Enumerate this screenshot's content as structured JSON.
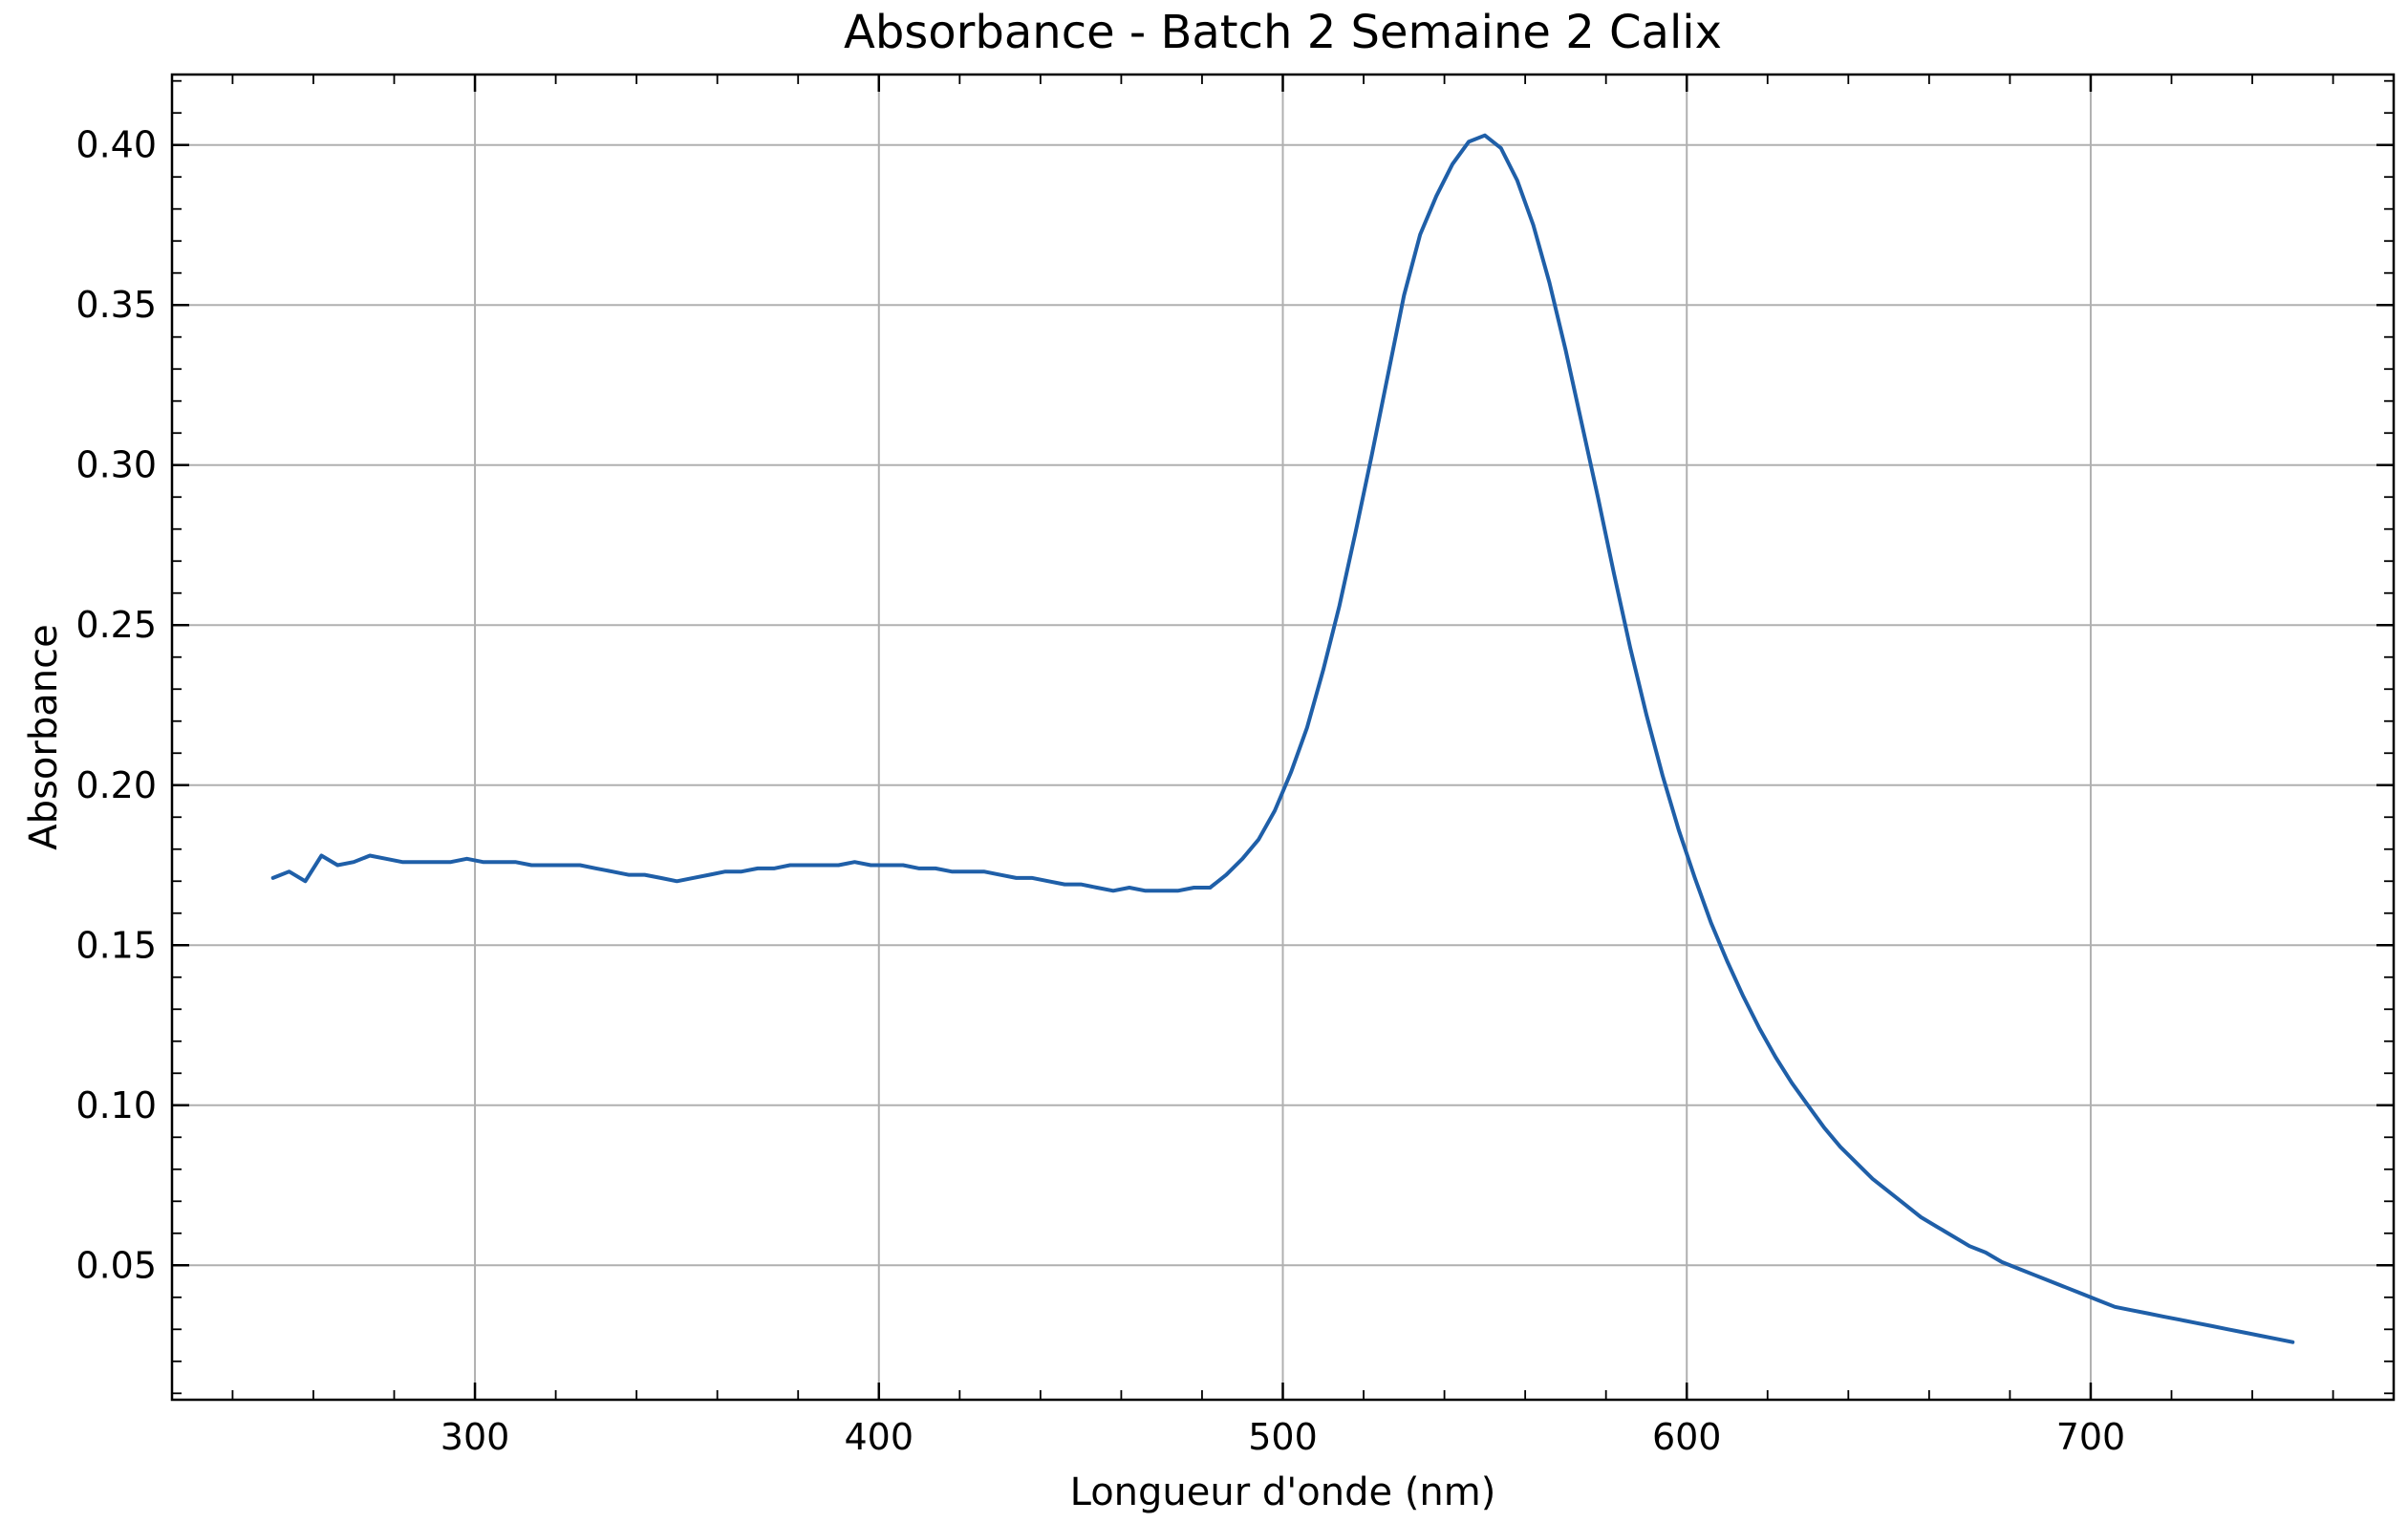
{
  "chart_data": {
    "type": "line",
    "title": "Absorbance - Batch 2 Semaine 2 Calix",
    "xlabel": "Longueur d'onde (nm)",
    "ylabel": "Absorbance",
    "xlim": [
      225,
      775
    ],
    "ylim": [
      0.008,
      0.422
    ],
    "xticks": [
      300,
      400,
      500,
      600,
      700
    ],
    "xtick_labels": [
      "300",
      "400",
      "500",
      "600",
      "700"
    ],
    "yticks": [
      0.05,
      0.1,
      0.15,
      0.2,
      0.25,
      0.3,
      0.35,
      0.4
    ],
    "ytick_labels": [
      "0.05",
      "0.10",
      "0.15",
      "0.20",
      "0.25",
      "0.30",
      "0.35",
      "0.40"
    ],
    "grid": true,
    "line_color": "#1f5fa8",
    "series": [
      {
        "x": [
          250,
          254,
          258,
          262,
          266,
          270,
          274,
          278,
          282,
          286,
          290,
          294,
          298,
          302,
          306,
          310,
          314,
          318,
          322,
          326,
          330,
          334,
          338,
          342,
          346,
          350,
          354,
          358,
          362,
          366,
          370,
          374,
          378,
          382,
          386,
          390,
          394,
          398,
          402,
          406,
          410,
          414,
          418,
          422,
          426,
          430,
          434,
          438,
          442,
          446,
          450,
          454,
          458,
          462,
          466,
          470,
          474,
          478,
          482,
          486,
          490,
          494,
          498,
          502,
          506,
          510,
          514,
          518,
          522,
          526,
          530,
          534,
          538,
          542,
          546,
          550,
          554,
          558,
          562,
          566,
          570,
          574,
          578,
          582,
          586,
          590,
          594,
          598,
          602,
          606,
          610,
          614,
          618,
          622,
          626,
          630,
          634,
          638,
          642,
          646,
          650,
          654,
          658,
          662,
          666,
          670,
          674,
          678,
          682,
          686,
          690,
          694,
          698,
          702,
          706,
          710,
          714,
          718,
          722,
          726,
          730,
          734,
          738,
          742,
          746,
          750
        ],
        "y": [
          0.171,
          0.173,
          0.17,
          0.178,
          0.175,
          0.176,
          0.178,
          0.177,
          0.176,
          0.176,
          0.176,
          0.176,
          0.177,
          0.176,
          0.176,
          0.176,
          0.175,
          0.175,
          0.175,
          0.175,
          0.174,
          0.173,
          0.172,
          0.172,
          0.171,
          0.17,
          0.171,
          0.172,
          0.173,
          0.173,
          0.174,
          0.174,
          0.175,
          0.175,
          0.175,
          0.175,
          0.176,
          0.175,
          0.175,
          0.175,
          0.174,
          0.174,
          0.173,
          0.173,
          0.173,
          0.172,
          0.171,
          0.171,
          0.17,
          0.169,
          0.169,
          0.168,
          0.167,
          0.168,
          0.167,
          0.167,
          0.167,
          0.168,
          0.168,
          0.172,
          0.177,
          0.183,
          0.192,
          0.204,
          0.218,
          0.236,
          0.256,
          0.279,
          0.303,
          0.328,
          0.353,
          0.372,
          0.384,
          0.394,
          0.401,
          0.403,
          0.399,
          0.389,
          0.375,
          0.357,
          0.336,
          0.313,
          0.29,
          0.266,
          0.243,
          0.222,
          0.203,
          0.186,
          0.171,
          0.157,
          0.145,
          0.134,
          0.124,
          0.115,
          0.107,
          0.1,
          0.093,
          0.087,
          0.082,
          0.077,
          0.073,
          0.069,
          0.065,
          0.062,
          0.059,
          0.056,
          0.054,
          0.051,
          0.049,
          0.047,
          0.045,
          0.043,
          0.041,
          0.039,
          0.037,
          0.036,
          0.035,
          0.034,
          0.033,
          0.032,
          0.031,
          0.03,
          0.029,
          0.028,
          0.027,
          0.026
        ]
      }
    ]
  }
}
